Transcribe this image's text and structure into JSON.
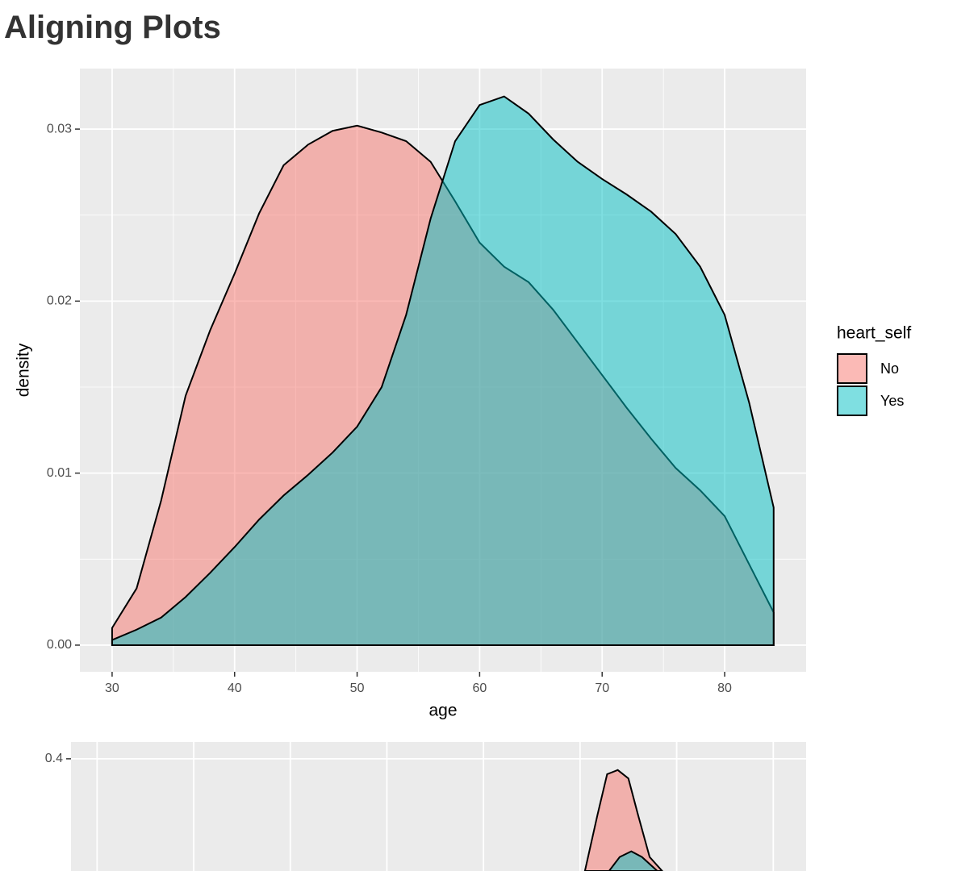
{
  "title": "Aligning Plots",
  "chart_data": [
    {
      "type": "area",
      "xlabel": "age",
      "ylabel": "density",
      "xlim": [
        27.37,
        86.65
      ],
      "ylim": [
        -0.00155,
        0.03352
      ],
      "xticks": [
        30,
        40,
        50,
        60,
        70,
        80
      ],
      "yticks": [
        {
          "value": 0,
          "label": "0.00"
        },
        0.01,
        0.02,
        0.03
      ],
      "grid": true,
      "legend_title": "heart_self",
      "legend": "right",
      "x": [
        30,
        32,
        34,
        36,
        38,
        40,
        42,
        44,
        46,
        48,
        50,
        52,
        54,
        56,
        58,
        60,
        62,
        64,
        66,
        68,
        70,
        72,
        74,
        76,
        78,
        80,
        82,
        84
      ],
      "series": [
        {
          "name": "No",
          "color": "#F8766D",
          "values": [
            0.001,
            0.0033,
            0.0084,
            0.0145,
            0.0183,
            0.0216,
            0.0251,
            0.0279,
            0.0291,
            0.0299,
            0.0302,
            0.0298,
            0.0293,
            0.0281,
            0.0258,
            0.0234,
            0.022,
            0.0211,
            0.0195,
            0.0176,
            0.0157,
            0.0138,
            0.012,
            0.0103,
            0.009,
            0.0075,
            0.0047,
            0.0019
          ]
        },
        {
          "name": "Yes",
          "color": "#00BFC4",
          "values": [
            0.0003,
            0.0009,
            0.0016,
            0.0028,
            0.0042,
            0.0057,
            0.0073,
            0.0087,
            0.0099,
            0.0112,
            0.0127,
            0.015,
            0.0192,
            0.0248,
            0.0293,
            0.0314,
            0.0319,
            0.0309,
            0.0294,
            0.0281,
            0.0271,
            0.0262,
            0.0252,
            0.0239,
            0.022,
            0.0192,
            0.0141,
            0.008
          ]
        }
      ]
    },
    {
      "type": "area",
      "xlim": [
        -0.27,
        7.34
      ],
      "ylim": [
        0.32,
        0.412
      ],
      "xgrid": [
        0,
        1,
        2,
        3,
        4,
        5,
        6,
        7
      ],
      "yticks": [
        0.4
      ],
      "grid": true,
      "series": [
        {
          "color": "#F8766D",
          "x": [
            5.05,
            5.18,
            5.28,
            5.39,
            5.5,
            5.6,
            5.72,
            5.85
          ],
          "values": [
            0.32,
            0.36,
            0.389,
            0.392,
            0.386,
            0.36,
            0.33,
            0.32
          ]
        },
        {
          "color": "#00BFC4",
          "x": [
            5.3,
            5.41,
            5.53,
            5.64,
            5.8
          ],
          "values": [
            0.32,
            0.33,
            0.334,
            0.33,
            0.32
          ]
        }
      ]
    }
  ]
}
